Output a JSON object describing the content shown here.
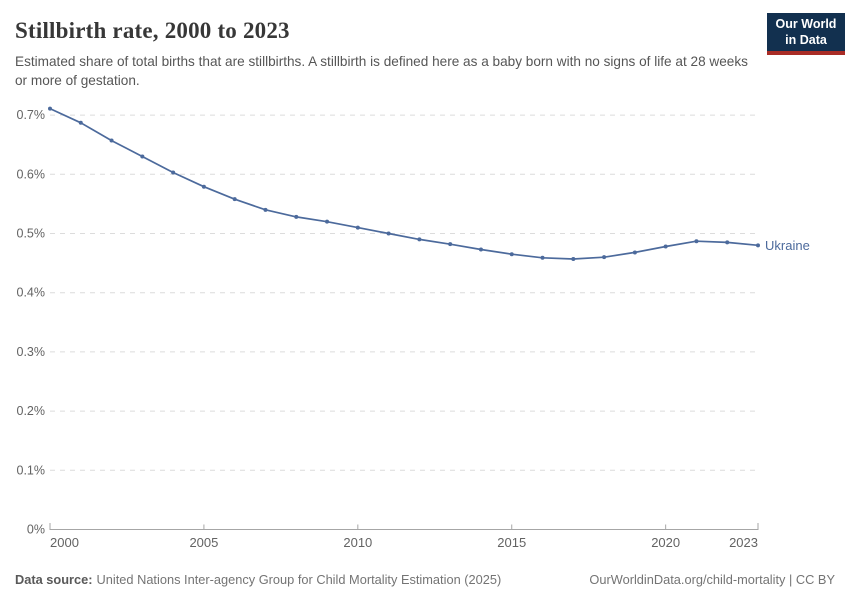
{
  "header": {
    "title": "Stillbirth rate, 2000 to 2023",
    "subtitle": "Estimated share of total births that are stillbirths. A stillbirth is defined here as a baby born with no signs of life at 28 weeks or more of gestation.",
    "logo": {
      "line1": "Our World",
      "line2": "in Data"
    }
  },
  "chart_data": {
    "type": "line",
    "title": "Stillbirth rate, 2000 to 2023",
    "xlabel": "",
    "ylabel": "",
    "unit": "%",
    "x": [
      2000,
      2001,
      2002,
      2003,
      2004,
      2005,
      2006,
      2007,
      2008,
      2009,
      2010,
      2011,
      2012,
      2013,
      2014,
      2015,
      2016,
      2017,
      2018,
      2019,
      2020,
      2021,
      2022,
      2023
    ],
    "series": [
      {
        "name": "Ukraine",
        "color": "#4c6a9c",
        "values": [
          0.711,
          0.687,
          0.657,
          0.63,
          0.603,
          0.579,
          0.558,
          0.54,
          0.528,
          0.52,
          0.51,
          0.5,
          0.49,
          0.482,
          0.473,
          0.465,
          0.459,
          0.457,
          0.46,
          0.468,
          0.478,
          0.487,
          0.485,
          0.48
        ]
      }
    ],
    "ylim": [
      0,
      0.72
    ],
    "yticks": [
      {
        "value": 0,
        "label": "0%"
      },
      {
        "value": 0.1,
        "label": "0.1%"
      },
      {
        "value": 0.2,
        "label": "0.2%"
      },
      {
        "value": 0.3,
        "label": "0.3%"
      },
      {
        "value": 0.4,
        "label": "0.4%"
      },
      {
        "value": 0.5,
        "label": "0.5%"
      },
      {
        "value": 0.6,
        "label": "0.6%"
      },
      {
        "value": 0.7,
        "label": "0.7%"
      }
    ],
    "xticks": [
      2000,
      2005,
      2010,
      2015,
      2020,
      2023
    ],
    "grid": "horizontal-dashed",
    "legend": "end-of-line-label"
  },
  "footer": {
    "source_label": "Data source:",
    "source_text": "United Nations Inter-agency Group for Child Mortality Estimation (2025)",
    "credit": "OurWorldinData.org/child-mortality | CC BY"
  },
  "colors": {
    "line": "#4c6a9c",
    "grid": "#dcdcdc",
    "axis": "#a6a6a6",
    "tick_label": "#636363",
    "logo_bg": "#12304f",
    "logo_accent": "#a92c26"
  }
}
